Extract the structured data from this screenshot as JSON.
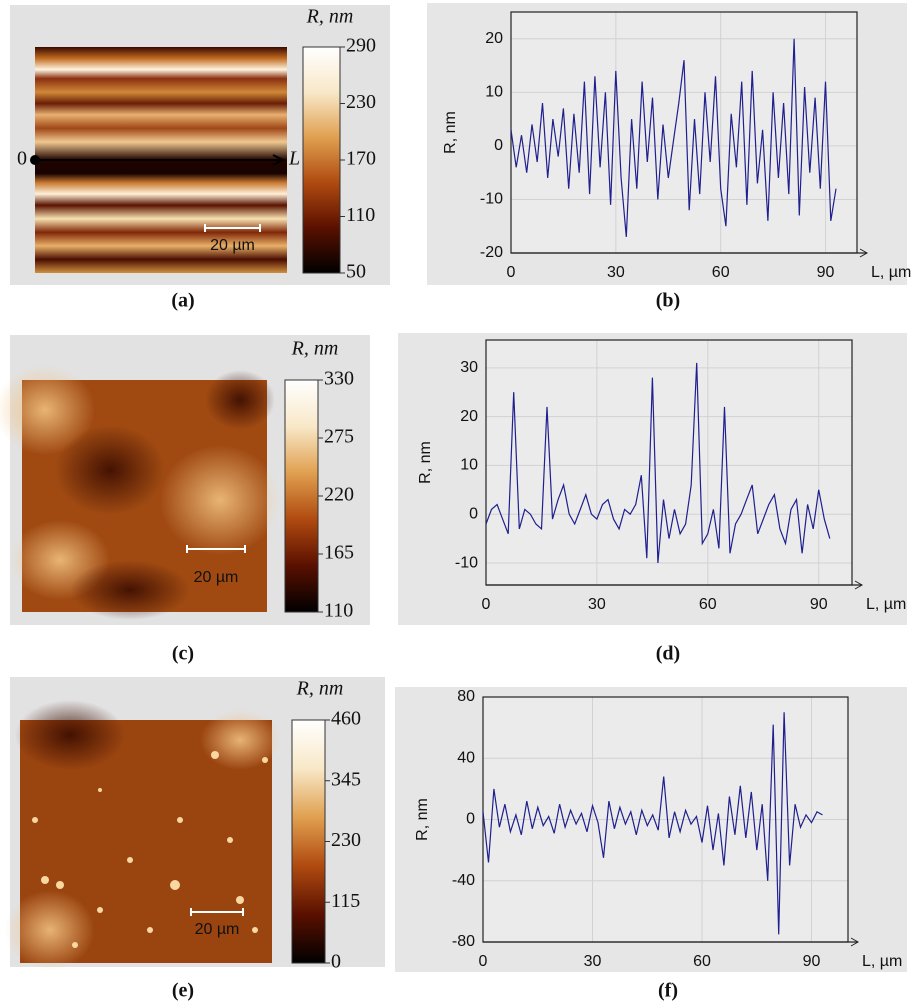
{
  "chart_data": [
    {
      "type": "heatmap",
      "panel_label": "(a)",
      "colorbar_label": "R, nm",
      "clim": [
        50,
        290
      ],
      "cticks": [
        50,
        110,
        170,
        230,
        290
      ],
      "colormap": [
        "#000000",
        "#5a1000",
        "#b04a10",
        "#e0a050",
        "#f8e8c8",
        "#ffffff"
      ],
      "scalebar_label": "20 µm",
      "profile_start": "0",
      "profile_end": "L"
    },
    {
      "type": "line",
      "panel_label": "(b)",
      "xlabel": "L, µm",
      "ylabel": "R, nm",
      "color": "#1f1f8f",
      "xlim": [
        0,
        99
      ],
      "ylim": [
        -20,
        25
      ],
      "xticks": [
        0,
        30,
        60,
        90
      ],
      "yticks": [
        -20,
        -10,
        0,
        10,
        20
      ],
      "grid": true,
      "x": [
        0,
        1.5,
        3,
        4.5,
        6,
        7.5,
        9,
        10.5,
        12,
        13.5,
        15,
        16.5,
        18,
        19.5,
        21,
        22.5,
        24,
        25.5,
        27,
        28.5,
        30,
        31.5,
        33,
        34.5,
        36,
        37.5,
        39,
        40.5,
        42,
        43.5,
        45,
        46.5,
        48,
        49.5,
        51,
        52.5,
        54,
        55.5,
        57,
        58.5,
        60,
        61.5,
        63,
        64.5,
        66,
        67.5,
        69,
        70.5,
        72,
        73.5,
        75,
        76.5,
        78,
        79.5,
        81,
        82.5,
        84,
        85.5,
        87,
        88.5,
        90,
        91.5,
        93
      ],
      "values": [
        3,
        -4,
        2,
        -5,
        4,
        -3,
        8,
        -6,
        5,
        -2,
        7,
        -8,
        6,
        -5,
        12,
        -9,
        13,
        -4,
        10,
        -11,
        14,
        -6,
        -17,
        5,
        -8,
        12,
        -3,
        9,
        -10,
        4,
        -6,
        1,
        8,
        16,
        -12,
        5,
        -9,
        10,
        -3,
        13,
        -8,
        -15,
        6,
        -4,
        12,
        -11,
        14,
        -7,
        3,
        -14,
        10,
        -6,
        8,
        -9,
        20,
        -13,
        11,
        -5,
        9,
        -8,
        12,
        -14,
        -8
      ]
    },
    {
      "type": "heatmap",
      "panel_label": "(c)",
      "colorbar_label": "R, nm",
      "clim": [
        110,
        330
      ],
      "cticks": [
        110,
        165,
        220,
        275,
        330
      ],
      "colormap": [
        "#000000",
        "#5a1000",
        "#b04a10",
        "#e0a050",
        "#f8e8c8",
        "#ffffff"
      ],
      "scalebar_label": "20 µm"
    },
    {
      "type": "line",
      "panel_label": "(d)",
      "xlabel": "L, µm",
      "ylabel": "R, nm",
      "color": "#1f1f8f",
      "xlim": [
        0,
        99
      ],
      "ylim": [
        -14.5,
        35.7
      ],
      "xticks": [
        0,
        30,
        60,
        90
      ],
      "yticks": [
        -10,
        0,
        10,
        20,
        30
      ],
      "grid": true,
      "x": [
        0,
        1.5,
        3,
        4.5,
        6,
        7.5,
        9,
        10.5,
        12,
        13.5,
        15,
        16.5,
        18,
        19.5,
        21,
        22.5,
        24,
        25.5,
        27,
        28.5,
        30,
        31.5,
        33,
        34.5,
        36,
        37.5,
        39,
        40.5,
        42,
        43.5,
        45,
        46.5,
        48,
        49.5,
        51,
        52.5,
        54,
        55.5,
        57,
        58.5,
        60,
        61.5,
        63,
        64.5,
        66,
        67.5,
        69,
        70.5,
        72,
        73.5,
        75,
        76.5,
        78,
        79.5,
        81,
        82.5,
        84,
        85.5,
        87,
        88.5,
        90,
        91.5,
        93
      ],
      "values": [
        -2,
        1,
        2,
        -1,
        -4,
        25,
        -3,
        1,
        0,
        -2,
        -3,
        22,
        -1,
        3,
        6,
        0,
        -2,
        1,
        4,
        0,
        -1,
        2,
        3,
        -1,
        -3,
        1,
        0,
        2,
        8,
        -9,
        28,
        -10,
        3,
        -5,
        1,
        -4,
        -2,
        6,
        31,
        -6,
        -4,
        1,
        -7,
        22,
        -8,
        -2,
        0,
        3,
        6,
        -4,
        -1,
        2,
        4,
        -3,
        -6,
        1,
        3,
        -8,
        2,
        -3,
        5,
        -1,
        -5
      ]
    },
    {
      "type": "heatmap",
      "panel_label": "(e)",
      "colorbar_label": "R, nm",
      "clim": [
        0,
        460
      ],
      "cticks": [
        0,
        115,
        230,
        345,
        460
      ],
      "colormap": [
        "#000000",
        "#5a1000",
        "#b04a10",
        "#e0a050",
        "#f8e8c8",
        "#ffffff"
      ],
      "scalebar_label": "20 µm"
    },
    {
      "type": "line",
      "panel_label": "(f)",
      "xlabel": "L, µm",
      "ylabel": "R, nm",
      "color": "#1f1f8f",
      "xlim": [
        0,
        100
      ],
      "ylim": [
        -80,
        80
      ],
      "xticks": [
        0,
        30,
        60,
        90
      ],
      "yticks": [
        -80,
        -40,
        0,
        40,
        80
      ],
      "grid": true,
      "x": [
        0,
        1.5,
        3,
        4.5,
        6,
        7.5,
        9,
        10.5,
        12,
        13.5,
        15,
        16.5,
        18,
        19.5,
        21,
        22.5,
        24,
        25.5,
        27,
        28.5,
        30,
        31.5,
        33,
        34.5,
        36,
        37.5,
        39,
        40.5,
        42,
        43.5,
        45,
        46.5,
        48,
        49.5,
        51,
        52.5,
        54,
        55.5,
        57,
        58.5,
        60,
        61.5,
        63,
        64.5,
        66,
        67.5,
        69,
        70.5,
        72,
        73.5,
        75,
        76.5,
        78,
        79.5,
        81,
        82.5,
        84,
        85.5,
        87,
        88.5,
        90,
        91.5,
        93
      ],
      "values": [
        5,
        -28,
        20,
        -5,
        10,
        -8,
        3,
        -10,
        12,
        -6,
        8,
        -4,
        2,
        -9,
        10,
        -5,
        6,
        -3,
        4,
        -8,
        9,
        -2,
        -25,
        12,
        -6,
        8,
        -3,
        5,
        -10,
        6,
        -4,
        3,
        -7,
        28,
        -12,
        5,
        -8,
        6,
        -3,
        2,
        -15,
        9,
        -20,
        4,
        -30,
        15,
        -10,
        22,
        -12,
        18,
        -20,
        10,
        -40,
        62,
        -75,
        70,
        -30,
        10,
        -5,
        3,
        -2,
        5,
        3
      ]
    }
  ]
}
